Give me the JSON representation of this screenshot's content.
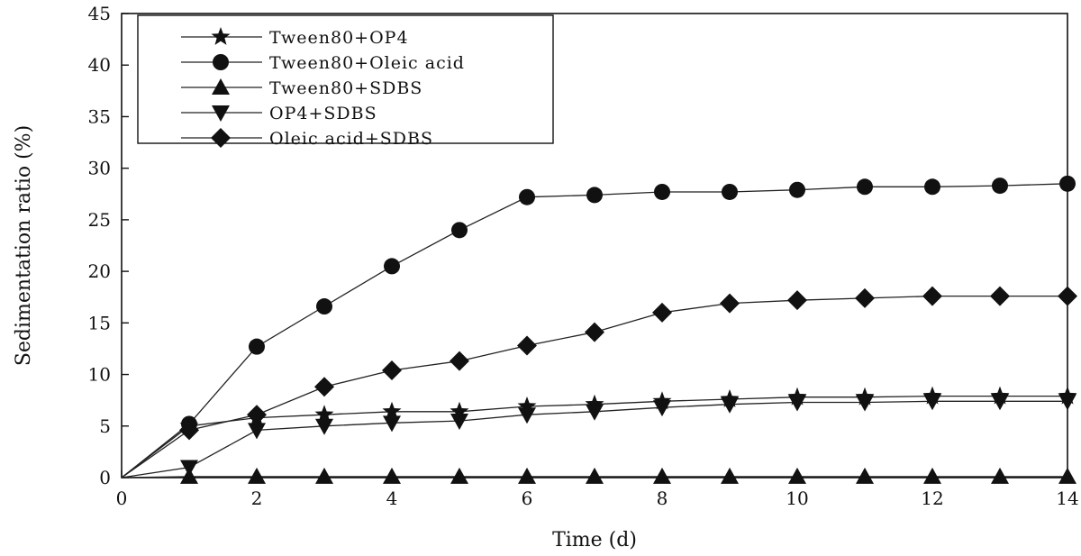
{
  "chart_data": {
    "type": "line",
    "title": "",
    "xlabel": "Time (d)",
    "ylabel": "Sedimentation ratio (%)",
    "xlim": [
      0,
      14
    ],
    "ylim": [
      0,
      45
    ],
    "x_ticks": [
      0,
      2,
      4,
      6,
      8,
      10,
      12,
      14
    ],
    "y_ticks": [
      0,
      5,
      10,
      15,
      20,
      25,
      30,
      35,
      40,
      45
    ],
    "grid": false,
    "legend_position": "top-left",
    "series": [
      {
        "name": "Tween80+OP4",
        "marker": "star",
        "x": [
          0,
          1,
          2,
          3,
          4,
          5,
          6,
          7,
          8,
          9,
          10,
          11,
          12,
          13,
          14
        ],
        "y": [
          0,
          5.0,
          5.8,
          6.1,
          6.4,
          6.4,
          6.9,
          7.1,
          7.4,
          7.6,
          7.8,
          7.8,
          7.9,
          7.9,
          7.9
        ]
      },
      {
        "name": "Tween80+Oleic acid",
        "marker": "circle",
        "x": [
          0,
          1,
          2,
          3,
          4,
          5,
          6,
          7,
          8,
          9,
          10,
          11,
          12,
          13,
          14
        ],
        "y": [
          0,
          5.2,
          12.7,
          16.6,
          20.5,
          24.0,
          27.2,
          27.4,
          27.7,
          27.7,
          27.9,
          28.2,
          28.2,
          28.3,
          28.5
        ]
      },
      {
        "name": "Tween80+SDBS",
        "marker": "triangle-up",
        "x": [
          0,
          1,
          2,
          3,
          4,
          5,
          6,
          7,
          8,
          9,
          10,
          11,
          12,
          13,
          14
        ],
        "y": [
          0,
          0.1,
          0.1,
          0.1,
          0.1,
          0.1,
          0.1,
          0.1,
          0.1,
          0.1,
          0.1,
          0.1,
          0.1,
          0.1,
          0.1
        ]
      },
      {
        "name": "OP4+SDBS",
        "marker": "triangle-down",
        "x": [
          0,
          1,
          2,
          3,
          4,
          5,
          6,
          7,
          8,
          9,
          10,
          11,
          12,
          13,
          14
        ],
        "y": [
          0,
          1.0,
          4.6,
          5.0,
          5.3,
          5.5,
          6.1,
          6.4,
          6.8,
          7.1,
          7.3,
          7.3,
          7.4,
          7.4,
          7.4
        ]
      },
      {
        "name": "Oleic acid+SDBS",
        "marker": "diamond",
        "x": [
          0,
          1,
          2,
          3,
          4,
          5,
          6,
          7,
          8,
          9,
          10,
          11,
          12,
          13,
          14
        ],
        "y": [
          0,
          4.6,
          6.1,
          8.8,
          10.4,
          11.3,
          12.8,
          14.1,
          16.0,
          16.9,
          17.2,
          17.4,
          17.6,
          17.6,
          17.6
        ]
      }
    ]
  }
}
